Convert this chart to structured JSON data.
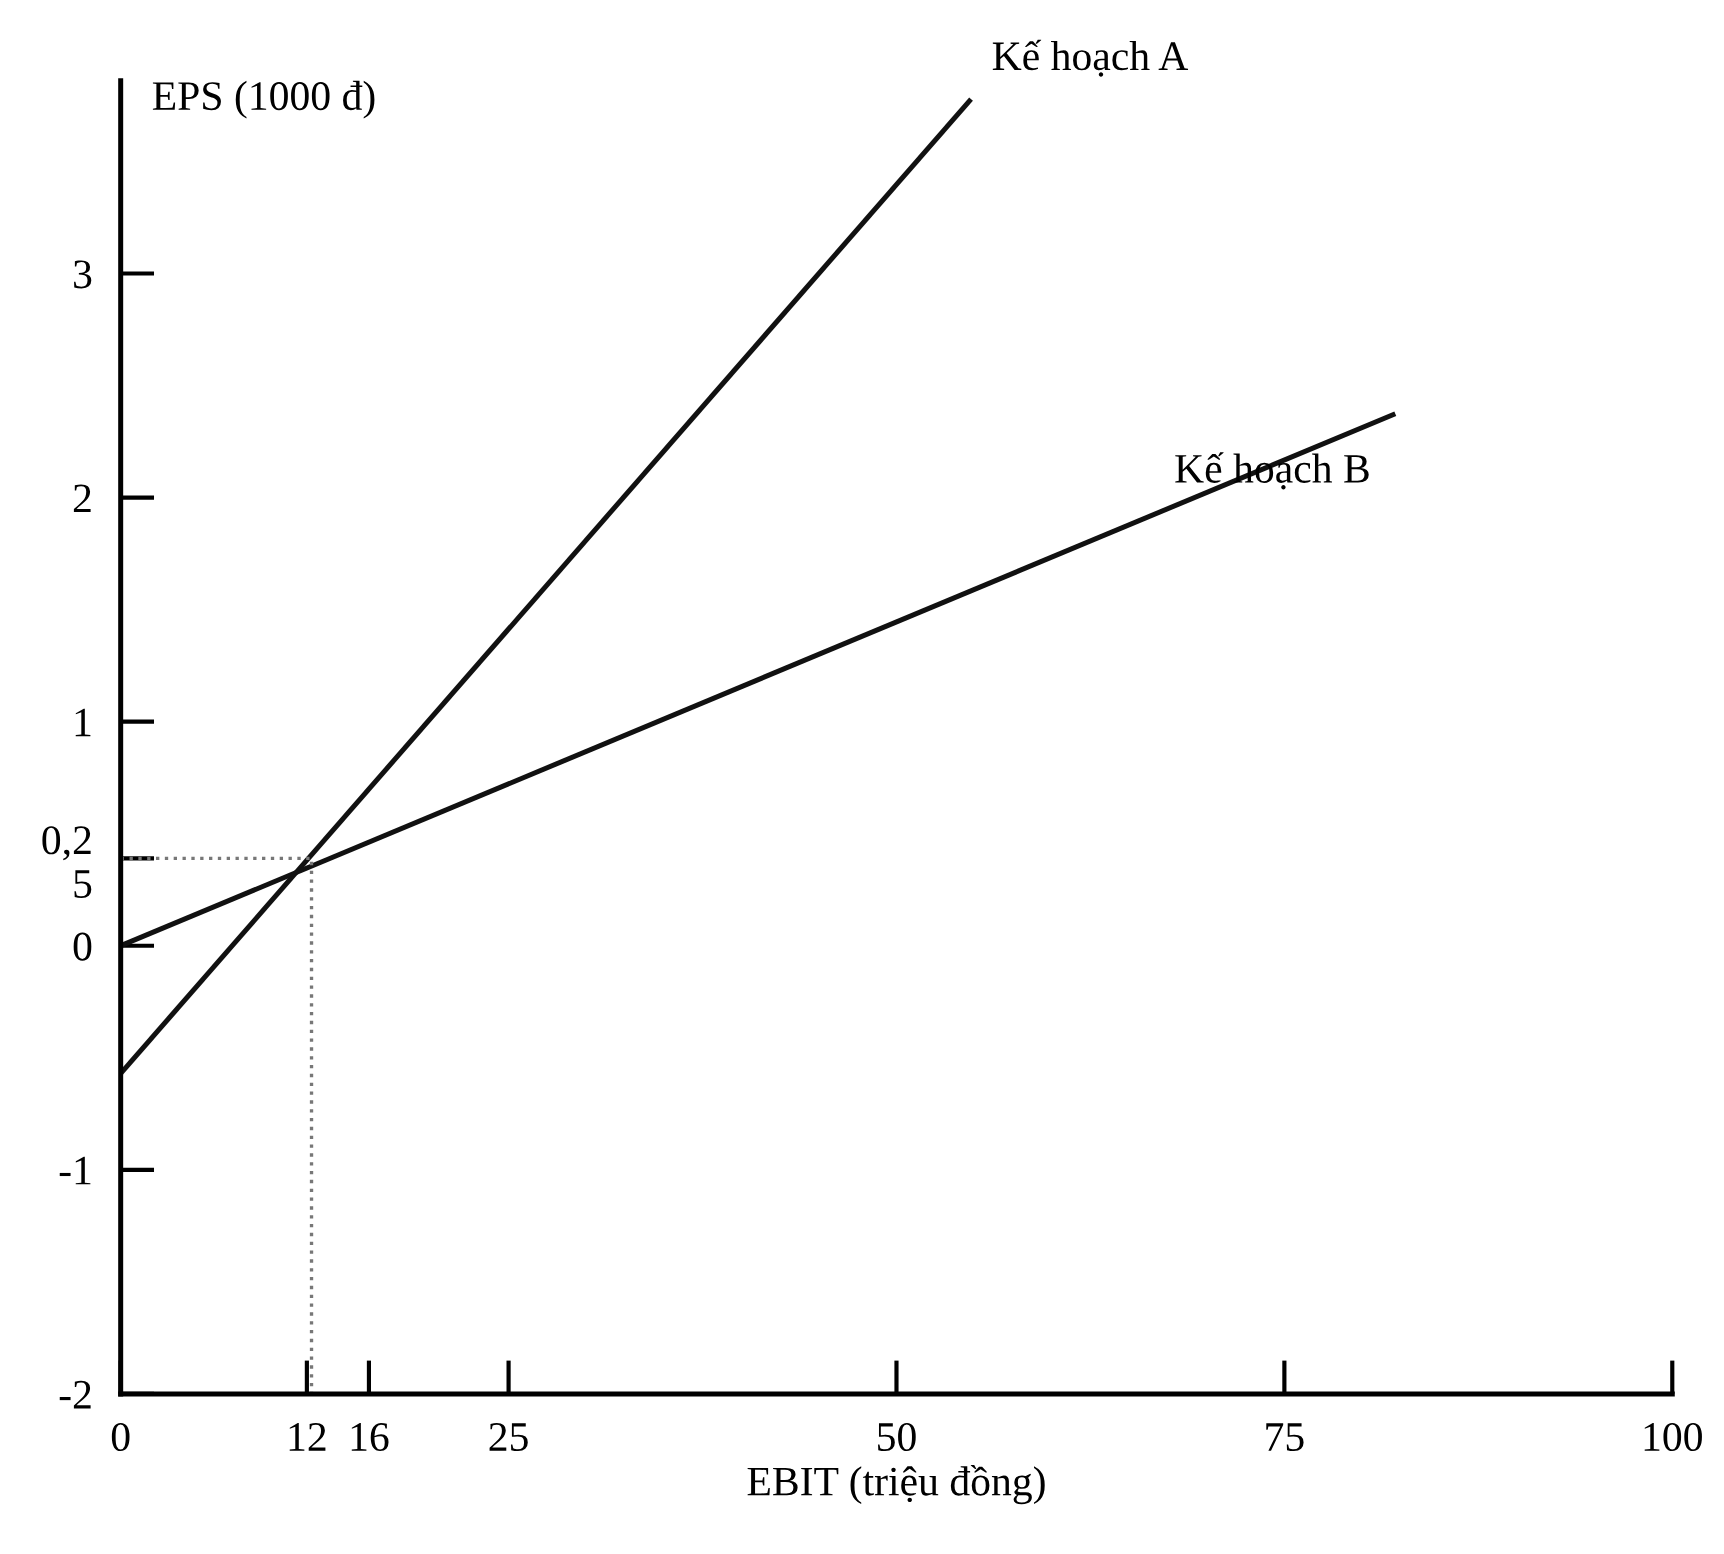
{
  "chart_data": {
    "type": "line",
    "xlabel": "EBIT (triệu đồng)",
    "ylabel": "EPS (1000 đ)",
    "xlim": [
      0,
      100
    ],
    "ylim": [
      -2,
      3.86
    ],
    "xticks": [
      0,
      {
        "value": 12,
        "label": "12"
      },
      16,
      25,
      50,
      75,
      100
    ],
    "yticks": [
      -2,
      -1,
      0,
      {
        "value": 0.39,
        "label": "0,2\n5"
      },
      1,
      2,
      3
    ],
    "grid": false,
    "legend": false,
    "marker": "none",
    "series": [
      {
        "name": "Kế hoạch A",
        "color": "#111111",
        "x": [
          0,
          54.7
        ],
        "values": [
          -0.57,
          3.77
        ]
      },
      {
        "name": "Kế hoạch B",
        "color": "#111111",
        "x": [
          0,
          82
        ],
        "values": [
          0,
          2.37
        ]
      },
      {
        "color": "#777777",
        "line_style": "dotted",
        "x": [
          0,
          12.3,
          12.3
        ],
        "values": [
          0.39,
          0.39,
          -2
        ]
      }
    ]
  }
}
